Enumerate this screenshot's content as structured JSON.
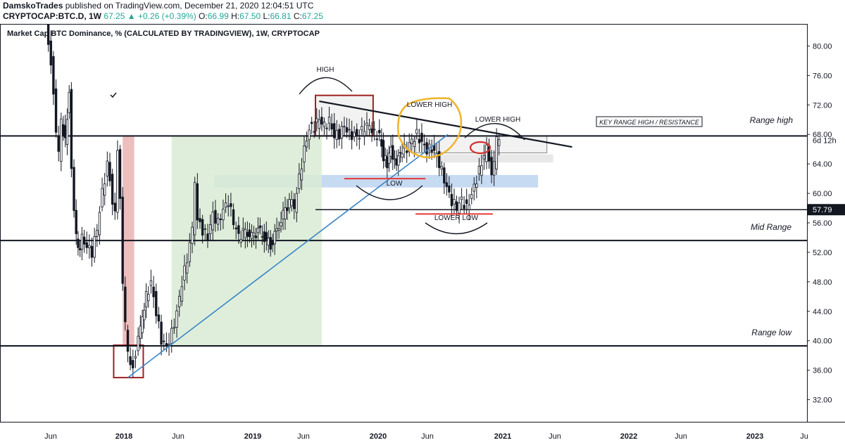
{
  "header": {
    "author": "DamskoTrades",
    "published": "published on TradingView.com, December 21, 2020 12:04:51 UTC",
    "symbol": "CRYPTOCAP:BTC.D, 1W",
    "last": "67.25",
    "change": "+0.26 (+0.39%)",
    "open_label": "O:",
    "open": "66.99",
    "high_label": "H:",
    "high": "67.50",
    "low_label": "L:",
    "low": "66.81",
    "close_label": "C:",
    "close": "67.25"
  },
  "chart_data": {
    "type": "candlestick",
    "title": "Market Cap BTC Dominance, % (CALCULATED BY TRADINGVIEW), 1W, CRYPTOCAP",
    "ylim": [
      29,
      83
    ],
    "y_ticks": [
      "80.00",
      "76.00",
      "72.00",
      "68.00",
      "64.00",
      "60.00",
      "56.00",
      "52.00",
      "48.00",
      "44.00",
      "40.00",
      "36.00",
      "32.00"
    ],
    "x_ticks": [
      "Jun",
      "2018",
      "Jun",
      "2019",
      "Jun",
      "2020",
      "Jun",
      "2021",
      "Jun",
      "2022",
      "Jun",
      "2023",
      "Ju"
    ],
    "bold_x_ticks": [
      "2018",
      "2019",
      "2020",
      "2021",
      "2022",
      "2023"
    ],
    "price_badge": "57.79",
    "timer_label": "6d 12h",
    "price_path": [
      [
        2017.4,
        86
      ],
      [
        2017.42,
        80
      ],
      [
        2017.44,
        78
      ],
      [
        2017.46,
        74
      ],
      [
        2017.48,
        68
      ],
      [
        2017.5,
        65
      ],
      [
        2017.52,
        70
      ],
      [
        2017.55,
        67
      ],
      [
        2017.58,
        74
      ],
      [
        2017.6,
        63
      ],
      [
        2017.62,
        57
      ],
      [
        2017.65,
        52
      ],
      [
        2017.68,
        54
      ],
      [
        2017.72,
        53
      ],
      [
        2017.76,
        52
      ],
      [
        2017.8,
        55
      ],
      [
        2017.84,
        60
      ],
      [
        2017.88,
        64
      ],
      [
        2017.9,
        62
      ],
      [
        2017.92,
        58
      ],
      [
        2017.94,
        57
      ],
      [
        2017.96,
        66
      ],
      [
        2017.98,
        60
      ],
      [
        2018.0,
        48
      ],
      [
        2018.02,
        42
      ],
      [
        2018.04,
        38
      ],
      [
        2018.06,
        37
      ],
      [
        2018.08,
        37
      ],
      [
        2018.1,
        38
      ],
      [
        2018.12,
        40
      ],
      [
        2018.15,
        43
      ],
      [
        2018.18,
        46
      ],
      [
        2018.22,
        48
      ],
      [
        2018.26,
        44
      ],
      [
        2018.3,
        40
      ],
      [
        2018.34,
        39
      ],
      [
        2018.38,
        41
      ],
      [
        2018.42,
        44
      ],
      [
        2018.46,
        48
      ],
      [
        2018.5,
        51
      ],
      [
        2018.54,
        55
      ],
      [
        2018.56,
        62
      ],
      [
        2018.58,
        57
      ],
      [
        2018.62,
        55
      ],
      [
        2018.66,
        54
      ],
      [
        2018.7,
        57
      ],
      [
        2018.74,
        56
      ],
      [
        2018.78,
        58
      ],
      [
        2018.82,
        59
      ],
      [
        2018.86,
        56
      ],
      [
        2018.9,
        54
      ],
      [
        2018.95,
        55
      ],
      [
        2019.0,
        54
      ],
      [
        2019.05,
        55
      ],
      [
        2019.1,
        54
      ],
      [
        2019.15,
        53
      ],
      [
        2019.2,
        55
      ],
      [
        2019.25,
        57
      ],
      [
        2019.3,
        59
      ],
      [
        2019.34,
        58
      ],
      [
        2019.38,
        62
      ],
      [
        2019.42,
        66
      ],
      [
        2019.46,
        69
      ],
      [
        2019.5,
        69
      ],
      [
        2019.54,
        70
      ],
      [
        2019.58,
        69
      ],
      [
        2019.62,
        70
      ],
      [
        2019.66,
        68
      ],
      [
        2019.7,
        68
      ],
      [
        2019.74,
        69
      ],
      [
        2019.78,
        68
      ],
      [
        2019.82,
        68
      ],
      [
        2019.86,
        68
      ],
      [
        2019.9,
        69
      ],
      [
        2019.94,
        69
      ],
      [
        2019.98,
        68
      ],
      [
        2020.02,
        68
      ],
      [
        2020.05,
        65
      ],
      [
        2020.08,
        64
      ],
      [
        2020.11,
        66
      ],
      [
        2020.14,
        64
      ],
      [
        2020.17,
        65
      ],
      [
        2020.2,
        66
      ],
      [
        2020.24,
        66
      ],
      [
        2020.28,
        67
      ],
      [
        2020.32,
        68
      ],
      [
        2020.36,
        67
      ],
      [
        2020.4,
        66
      ],
      [
        2020.44,
        66
      ],
      [
        2020.48,
        65
      ],
      [
        2020.52,
        63
      ],
      [
        2020.56,
        61
      ],
      [
        2020.6,
        59
      ],
      [
        2020.64,
        58
      ],
      [
        2020.68,
        59
      ],
      [
        2020.72,
        58
      ],
      [
        2020.76,
        60
      ],
      [
        2020.8,
        62
      ],
      [
        2020.84,
        64
      ],
      [
        2020.88,
        66
      ],
      [
        2020.9,
        65
      ],
      [
        2020.92,
        63
      ],
      [
        2020.94,
        64
      ],
      [
        2020.96,
        67
      ],
      [
        2020.98,
        67.25
      ]
    ],
    "horizontal_levels": [
      {
        "label": "Range high",
        "value": 67.8
      },
      {
        "label": "Mid Range",
        "value": 53.6
      },
      {
        "label": "Range low",
        "value": 39.3
      },
      {
        "label": "",
        "value": 57.79
      }
    ],
    "zones": [
      {
        "color": "#f0f0f0",
        "x0": 2019.5,
        "x1": 2019.96,
        "y0": 67.8,
        "y1": 73.3
      },
      {
        "color": "#f0f0f0",
        "x0": 2020.3,
        "x1": 2021.35,
        "y0": 65.5,
        "y1": 67.8
      },
      {
        "color": "#e4e4e4",
        "x0": 2020.47,
        "x1": 2021.4,
        "y0": 64.2,
        "y1": 65.3
      },
      {
        "color": "#bcd4f0",
        "x0": 2018.7,
        "x1": 2021.28,
        "y0": 60.8,
        "y1": 62.5
      },
      {
        "color": "#d9ebd3",
        "x0": 2018.37,
        "x1": 2019.55,
        "y0": 39.3,
        "y1": 67.8
      },
      {
        "color": "#eab3b3",
        "x0": 2017.99,
        "x1": 2018.08,
        "y0": 39.5,
        "y1": 67.8
      }
    ],
    "annotations": [
      "HIGH",
      "LOWER HIGH",
      "LOWER HIGH",
      "LOW",
      "LOWER LOW",
      "KEY RANGE HIGH / RESISTANCE",
      "Range high",
      "Mid Range",
      "Range low"
    ]
  }
}
